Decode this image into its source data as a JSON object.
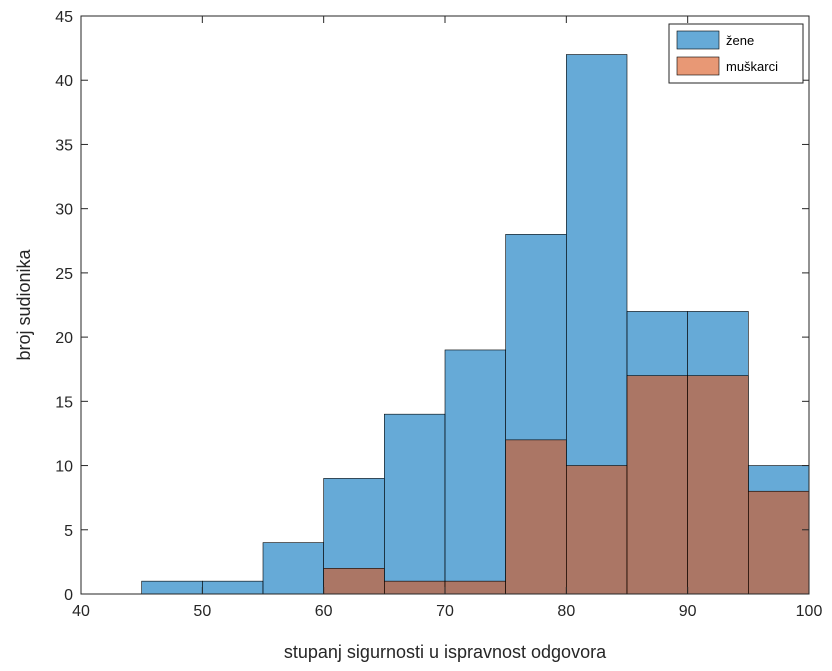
{
  "chart_data": {
    "type": "bar",
    "subtype": "overlaid-histogram",
    "title": "",
    "xlabel": "stupanj sigurnosti u ispravnost odgovora",
    "ylabel": "broj sudionika",
    "xlim": [
      40,
      100
    ],
    "ylim": [
      0,
      45
    ],
    "xticks": [
      40,
      50,
      60,
      70,
      80,
      90,
      100
    ],
    "yticks": [
      0,
      5,
      10,
      15,
      20,
      25,
      30,
      35,
      40,
      45
    ],
    "bin_edges": [
      45,
      50,
      55,
      60,
      65,
      70,
      75,
      80,
      85,
      90,
      95,
      100
    ],
    "series": [
      {
        "name": "žene",
        "color": "#0072BD",
        "values": [
          1,
          1,
          4,
          9,
          14,
          19,
          28,
          42,
          22,
          22,
          10
        ]
      },
      {
        "name": "muškarci",
        "color": "#D95319",
        "values": [
          0,
          0,
          0,
          2,
          1,
          1,
          12,
          10,
          17,
          17,
          8
        ]
      }
    ],
    "grid": false,
    "legend": "top-right"
  }
}
